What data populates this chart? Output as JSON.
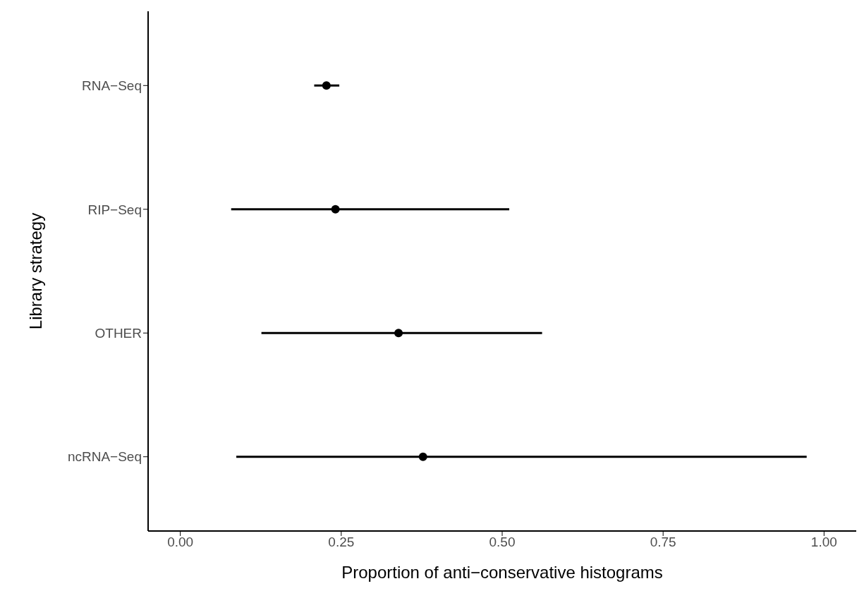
{
  "chart_data": {
    "type": "scatter",
    "orientation": "horizontal",
    "categories": [
      "RNA−Seq",
      "RIP−Seq",
      "OTHER",
      "ncRNA−Seq"
    ],
    "values": [
      0.227,
      0.241,
      0.339,
      0.377
    ],
    "errors": [
      [
        0.208,
        0.247
      ],
      [
        0.079,
        0.511
      ],
      [
        0.126,
        0.562
      ],
      [
        0.087,
        0.973
      ]
    ],
    "xlabel": "Proportion of anti−conservative histograms",
    "ylabel": "Library strategy",
    "xlim": [
      -0.05,
      1.05
    ],
    "xticks": [
      {
        "value": 0,
        "label": "0.00"
      },
      {
        "value": 0.25,
        "label": "0.25"
      },
      {
        "value": 0.5,
        "label": "0.50"
      },
      {
        "value": 0.75,
        "label": "0.75"
      },
      {
        "value": 1,
        "label": "1.00"
      }
    ],
    "color": "#000000",
    "marker": "circle",
    "grid": false,
    "legend": false
  }
}
